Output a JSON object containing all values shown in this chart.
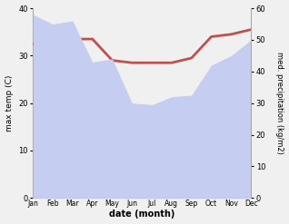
{
  "months": [
    "Jan",
    "Feb",
    "Mar",
    "Apr",
    "May",
    "Jun",
    "Jul",
    "Aug",
    "Sep",
    "Oct",
    "Nov",
    "Dec"
  ],
  "temp": [
    32.5,
    33.0,
    33.5,
    33.5,
    29.0,
    28.5,
    28.5,
    28.5,
    29.5,
    34.0,
    34.5,
    35.5
  ],
  "precip": [
    58.0,
    55.0,
    56.0,
    43.0,
    44.0,
    30.0,
    29.5,
    32.0,
    32.5,
    42.0,
    45.0,
    50.0
  ],
  "temp_color": "#c0504d",
  "precip_fill_color": "#c5cef0",
  "ylabel_left": "max temp (C)",
  "ylabel_right": "med. precipitation (kg/m2)",
  "xlabel": "date (month)",
  "ylim_left": [
    0,
    40
  ],
  "ylim_right": [
    0,
    60
  ],
  "yticks_left": [
    0,
    10,
    20,
    30,
    40
  ],
  "yticks_right": [
    0,
    10,
    20,
    30,
    40,
    50,
    60
  ],
  "background_color": "#f0f0f0",
  "temp_linewidth": 2.0
}
